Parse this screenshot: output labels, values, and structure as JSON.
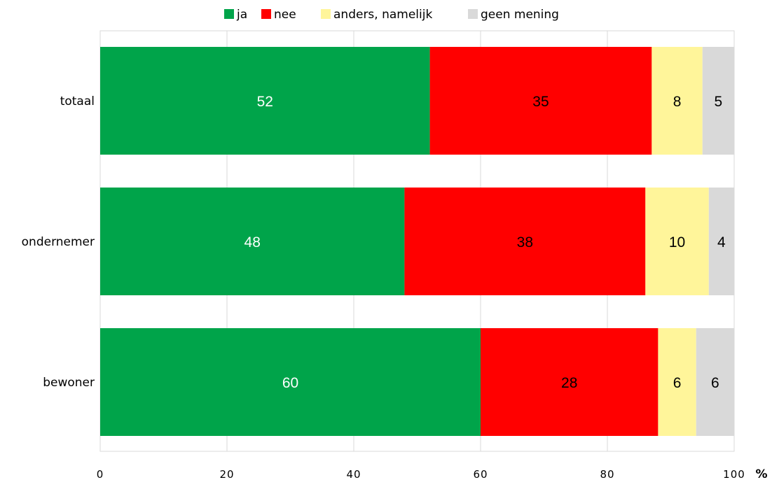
{
  "chart_data": {
    "type": "bar",
    "orientation": "horizontal",
    "stacked": true,
    "title": "",
    "xlabel": "",
    "ylabel": "",
    "x_unit_label": "%",
    "xlim": [
      0,
      100
    ],
    "x_ticks": [
      "0",
      "20",
      "40",
      "60",
      "80",
      "100"
    ],
    "grid": true,
    "legend_position": "top",
    "categories": [
      "totaal",
      "ondernemer",
      "bewoner"
    ],
    "series": [
      {
        "name": "ja",
        "color": "#00a44a",
        "label_color": "#ffffff",
        "values": [
          52,
          48,
          60
        ]
      },
      {
        "name": "nee",
        "color": "#ff0000",
        "label_color": "#000000",
        "values": [
          35,
          38,
          28
        ]
      },
      {
        "name": "anders, namelijk",
        "color": "#fff59a",
        "label_color": "#000000",
        "values": [
          8,
          10,
          6
        ]
      },
      {
        "name": "geen mening",
        "color": "#d9d9d9",
        "label_color": "#000000",
        "values": [
          5,
          4,
          6
        ]
      }
    ]
  }
}
